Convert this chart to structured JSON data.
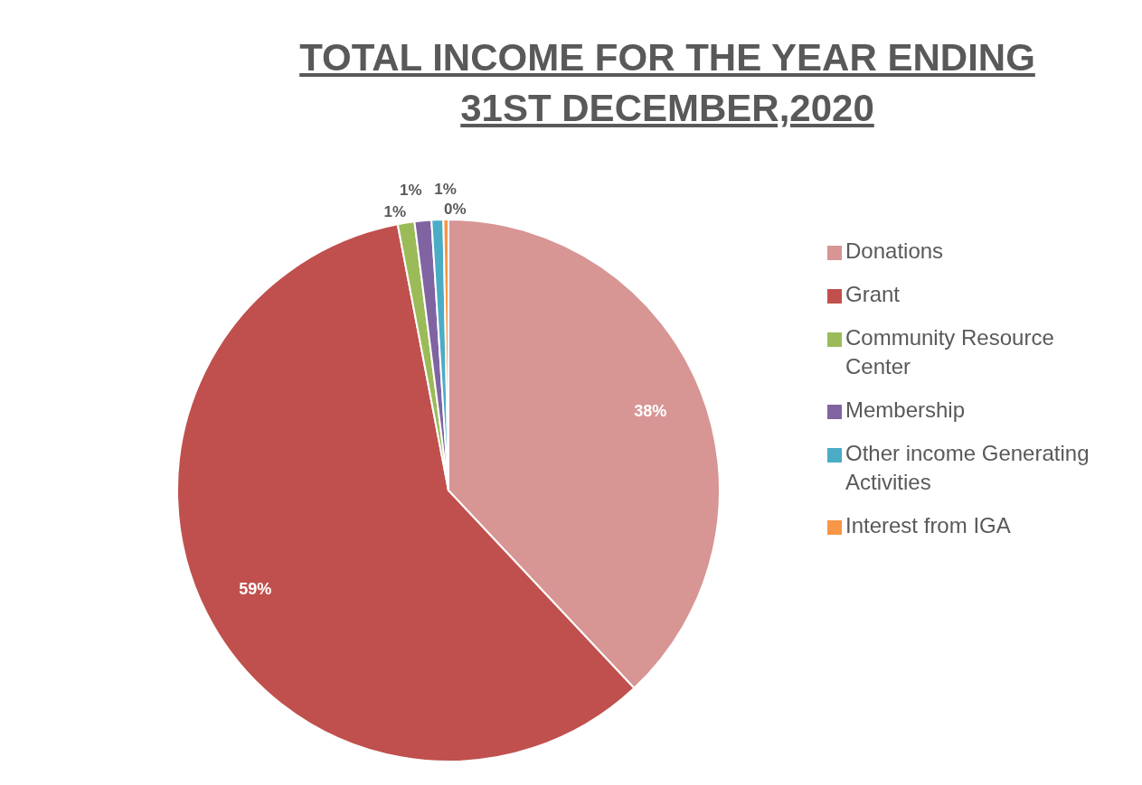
{
  "chart_data": {
    "type": "pie",
    "title": "TOTAL INCOME FOR THE YEAR ENDING 31ST DECEMBER,2020",
    "categories": [
      "Donations",
      "Grant",
      "Community Resource Center",
      "Membership",
      "Other income Generating Activities",
      "Interest from IGA"
    ],
    "values": [
      38,
      59,
      1,
      1,
      0.7,
      0.3
    ],
    "value_labels": [
      "38%",
      "59%",
      "1%",
      "1%",
      "1%",
      "0%"
    ],
    "colors": [
      "#d79594",
      "#c0504d",
      "#9bbb59",
      "#8064a2",
      "#4bacc6",
      "#f79646"
    ],
    "legend": "right"
  }
}
